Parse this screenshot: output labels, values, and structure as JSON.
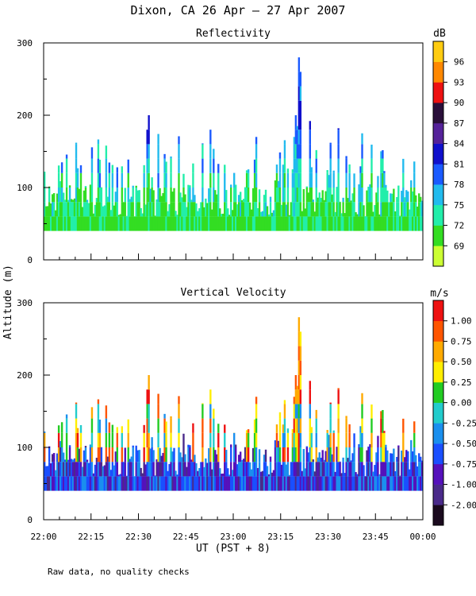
{
  "figure": {
    "title": "Dixon, CA 26 Apr – 27 Apr 2007",
    "ylabel": "Altitude (m)",
    "xlabel": "UT  (PST + 8)",
    "footnote": "Raw data, no quality checks"
  },
  "chart_data": [
    {
      "type": "heatmap",
      "title": "Reflectivity",
      "ylabel": "Altitude (m)",
      "xlabel": "UT  (PST + 8)",
      "x_ticks": [
        "22:00",
        "22:15",
        "22:30",
        "22:45",
        "23:00",
        "23:15",
        "23:30",
        "23:45",
        "00:00"
      ],
      "x_range": [
        "22:00",
        "00:00"
      ],
      "y_ticks": [
        0,
        100,
        200,
        300
      ],
      "ylim": [
        0,
        300
      ],
      "colorbar": {
        "unit": "dB",
        "ticks": [
          69,
          72,
          75,
          78,
          81,
          84,
          87,
          90,
          93,
          96
        ],
        "range": [
          67.5,
          99
        ],
        "colors": [
          "#ccff33",
          "#33dd22",
          "#22eeaa",
          "#22bbee",
          "#1a5aff",
          "#1010cc",
          "#55229a",
          "#2a0f3a",
          "#ee1111",
          "#ff8800",
          "#ffcc11"
        ]
      },
      "data_range_alt": [
        40,
        280
      ],
      "peak": {
        "time": "23:27",
        "altitude": 280
      }
    },
    {
      "type": "heatmap",
      "title": "Vertical Velocity",
      "ylabel": "Altitude (m)",
      "xlabel": "UT  (PST + 8)",
      "x_ticks": [
        "22:00",
        "22:15",
        "22:30",
        "22:45",
        "23:00",
        "23:15",
        "23:30",
        "23:45",
        "00:00"
      ],
      "x_range": [
        "22:00",
        "00:00"
      ],
      "y_ticks": [
        0,
        100,
        200,
        300
      ],
      "ylim": [
        0,
        300
      ],
      "colorbar": {
        "unit": "m/s",
        "ticks": [
          "-2.00",
          "-1.00",
          "-0.75",
          "-0.50",
          "-0.25",
          "0.00",
          "0.25",
          "0.50",
          "0.75",
          "1.00"
        ],
        "colors": [
          "#1a0a1e",
          "#4a2a8a",
          "#5511bb",
          "#1a4fff",
          "#1a8fee",
          "#22cccc",
          "#22cc22",
          "#ffee00",
          "#ffaa00",
          "#ff5500",
          "#ee1111"
        ]
      },
      "data_range_alt": [
        40,
        280
      ],
      "peak": {
        "time": "23:27",
        "altitude": 280
      }
    }
  ]
}
